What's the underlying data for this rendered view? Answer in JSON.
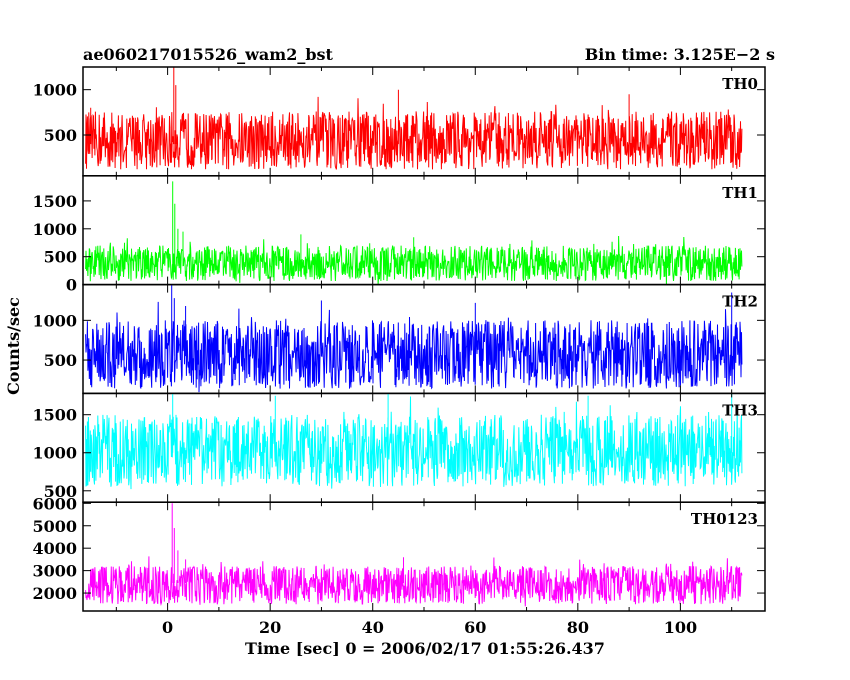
{
  "chart_data": {
    "type": "line",
    "title": "ae060217015526_wam2_bst",
    "subtitle": "Bin time: 3.125E−2 s",
    "xlabel": "Time [sec] 0 = 2006/02/17 01:55:26.437",
    "ylabel": "Counts/sec",
    "xlim": [
      -16.5,
      116.5
    ],
    "x_range": [
      -16,
      112
    ],
    "x_ticks": [
      0,
      20,
      40,
      60,
      80,
      100
    ],
    "x_tick_labels": [
      "0",
      "20",
      "40",
      "60",
      "80",
      "100"
    ],
    "panels": [
      {
        "name": "TH0",
        "color": "#ff0000",
        "ylim": [
          50,
          1250
        ],
        "yticks": [
          500,
          1000
        ],
        "ytick_labels": [
          "500",
          "1000"
        ],
        "baseline": 400,
        "band": [
          120,
          760
        ],
        "spikes": [
          [
            -15,
            800
          ],
          [
            1.2,
            1300
          ],
          [
            1.6,
            1050
          ],
          [
            45,
            1000
          ],
          [
            90,
            950
          ]
        ]
      },
      {
        "name": "TH1",
        "color": "#00ff00",
        "ylim": [
          0,
          1950
        ],
        "yticks": [
          0,
          500,
          1000,
          1500
        ],
        "ytick_labels": [
          "0",
          "500",
          "1000",
          "1500"
        ],
        "baseline": 330,
        "band": [
          60,
          700
        ],
        "spikes": [
          [
            1.0,
            1850
          ],
          [
            1.4,
            1450
          ],
          [
            2.0,
            1000
          ],
          [
            3.0,
            950
          ],
          [
            26,
            900
          ],
          [
            48,
            850
          ]
        ]
      },
      {
        "name": "TH2",
        "color": "#0000ff",
        "ylim": [
          80,
          1450
        ],
        "yticks": [
          500,
          1000
        ],
        "ytick_labels": [
          "500",
          "1000"
        ],
        "baseline": 550,
        "band": [
          140,
          1000
        ],
        "spikes": [
          [
            0.8,
            1500
          ],
          [
            1.3,
            1280
          ],
          [
            3.5,
            1180
          ],
          [
            30,
            1250
          ],
          [
            60,
            1220
          ],
          [
            110,
            1350
          ]
        ]
      },
      {
        "name": "TH3",
        "color": "#00ffff",
        "ylim": [
          350,
          1780
        ],
        "yticks": [
          500,
          1000,
          1500
        ],
        "ytick_labels": [
          "500",
          "1000",
          "1500"
        ],
        "baseline": 1000,
        "band": [
          550,
          1500
        ],
        "spikes": [
          [
            1.0,
            1780
          ],
          [
            21,
            1750
          ],
          [
            43,
            1780
          ],
          [
            82,
            1750
          ],
          [
            110,
            1780
          ]
        ]
      },
      {
        "name": "TH0123",
        "color": "#ff00ff",
        "ylim": [
          1200,
          6050
        ],
        "yticks": [
          2000,
          3000,
          4000,
          5000,
          6000
        ],
        "ytick_labels": [
          "2000",
          "3000",
          "4000",
          "5000",
          "6000"
        ],
        "baseline": 2450,
        "band": [
          1500,
          3200
        ],
        "spikes": [
          [
            0.9,
            6000
          ],
          [
            1.3,
            4900
          ],
          [
            2.0,
            3900
          ],
          [
            3.5,
            3500
          ],
          [
            46,
            3600
          ]
        ]
      }
    ]
  }
}
